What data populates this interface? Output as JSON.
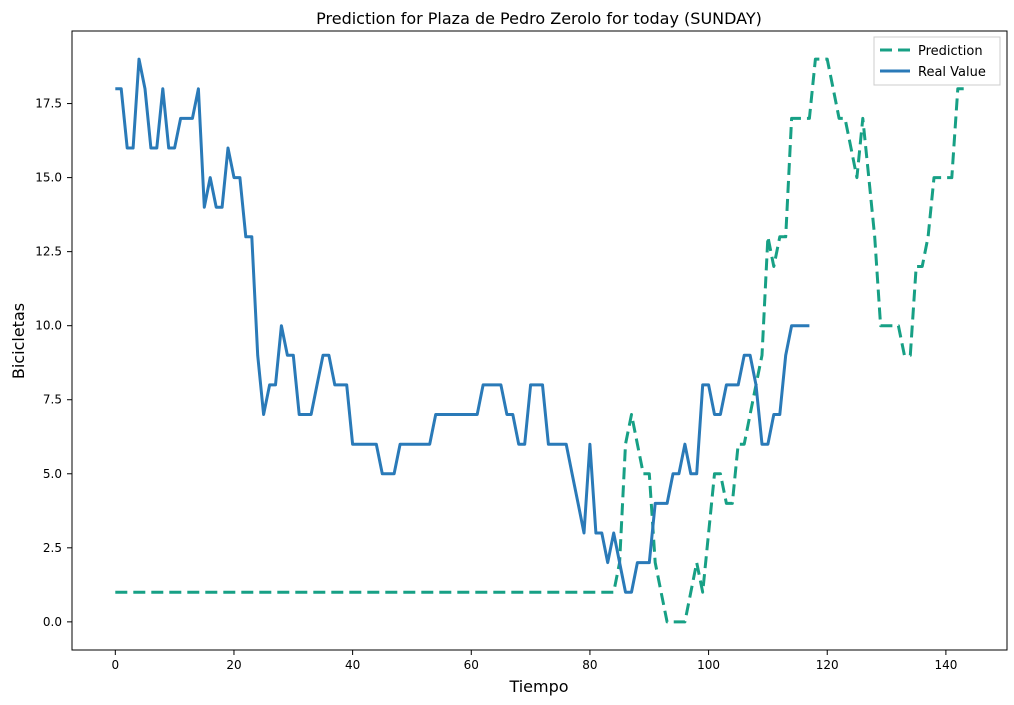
{
  "chart_data": {
    "type": "line",
    "title": "Prediction for Plaza de Pedro Zerolo for today (SUNDAY)",
    "xlabel": "Tiempo",
    "ylabel": "Bicicletas",
    "xlim": [
      -7.3,
      150.3
    ],
    "ylim": [
      -0.95,
      19.95
    ],
    "xticks": [
      0,
      20,
      40,
      60,
      80,
      100,
      120,
      140
    ],
    "xtick_labels": [
      "0",
      "20",
      "40",
      "60",
      "80",
      "100",
      "120",
      "140"
    ],
    "yticks": [
      0,
      2.5,
      5,
      7.5,
      10,
      12.5,
      15,
      17.5
    ],
    "ytick_labels": [
      "0.0",
      "2.5",
      "5.0",
      "7.5",
      "10.0",
      "12.5",
      "15.0",
      "17.5"
    ],
    "grid": false,
    "legend_position": "top-right",
    "series": [
      {
        "name": "Prediction",
        "color": "#17a085",
        "dash": "dashed",
        "points": [
          [
            0,
            1
          ],
          [
            83,
            1
          ],
          [
            84,
            1
          ],
          [
            85,
            2
          ],
          [
            86,
            6
          ],
          [
            87,
            7
          ],
          [
            88,
            6
          ],
          [
            89,
            5
          ],
          [
            90,
            5
          ],
          [
            91,
            2
          ],
          [
            92,
            1
          ],
          [
            93,
            0
          ],
          [
            94,
            0
          ],
          [
            95,
            0
          ],
          [
            96,
            0
          ],
          [
            97,
            1
          ],
          [
            98,
            2
          ],
          [
            99,
            1
          ],
          [
            100,
            3
          ],
          [
            101,
            5
          ],
          [
            102,
            5
          ],
          [
            103,
            4
          ],
          [
            104,
            4
          ],
          [
            105,
            6
          ],
          [
            106,
            6
          ],
          [
            107,
            7
          ],
          [
            108,
            8
          ],
          [
            109,
            9
          ],
          [
            110,
            13
          ],
          [
            111,
            12
          ],
          [
            112,
            13
          ],
          [
            113,
            13
          ],
          [
            114,
            17
          ],
          [
            115,
            17
          ],
          [
            116,
            17
          ],
          [
            117,
            17
          ],
          [
            118,
            19
          ],
          [
            119,
            19
          ],
          [
            120,
            19
          ],
          [
            121,
            18
          ],
          [
            122,
            17
          ],
          [
            123,
            17
          ],
          [
            124,
            16
          ],
          [
            125,
            15
          ],
          [
            126,
            17
          ],
          [
            127,
            15
          ],
          [
            128,
            13
          ],
          [
            129,
            10
          ],
          [
            130,
            10
          ],
          [
            131,
            10
          ],
          [
            132,
            10
          ],
          [
            133,
            9
          ],
          [
            134,
            9
          ],
          [
            135,
            12
          ],
          [
            136,
            12
          ],
          [
            137,
            13
          ],
          [
            138,
            15
          ],
          [
            139,
            15
          ],
          [
            140,
            15
          ],
          [
            141,
            15
          ],
          [
            142,
            18
          ],
          [
            143,
            18
          ]
        ]
      },
      {
        "name": "Real Value",
        "color": "#2a7ab8",
        "dash": "solid",
        "points": [
          [
            0,
            18
          ],
          [
            1,
            18
          ],
          [
            2,
            16
          ],
          [
            3,
            16
          ],
          [
            4,
            19
          ],
          [
            5,
            18
          ],
          [
            6,
            16
          ],
          [
            7,
            16
          ],
          [
            8,
            18
          ],
          [
            9,
            16
          ],
          [
            10,
            16
          ],
          [
            11,
            17
          ],
          [
            12,
            17
          ],
          [
            13,
            17
          ],
          [
            14,
            18
          ],
          [
            15,
            14
          ],
          [
            16,
            15
          ],
          [
            17,
            14
          ],
          [
            18,
            14
          ],
          [
            19,
            16
          ],
          [
            20,
            15
          ],
          [
            21,
            15
          ],
          [
            22,
            13
          ],
          [
            23,
            13
          ],
          [
            24,
            9
          ],
          [
            25,
            7
          ],
          [
            26,
            8
          ],
          [
            27,
            8
          ],
          [
            28,
            10
          ],
          [
            29,
            9
          ],
          [
            30,
            9
          ],
          [
            31,
            7
          ],
          [
            32,
            7
          ],
          [
            33,
            7
          ],
          [
            34,
            8
          ],
          [
            35,
            9
          ],
          [
            36,
            9
          ],
          [
            37,
            8
          ],
          [
            38,
            8
          ],
          [
            39,
            8
          ],
          [
            40,
            6
          ],
          [
            41,
            6
          ],
          [
            42,
            6
          ],
          [
            43,
            6
          ],
          [
            44,
            6
          ],
          [
            45,
            5
          ],
          [
            46,
            5
          ],
          [
            47,
            5
          ],
          [
            48,
            6
          ],
          [
            49,
            6
          ],
          [
            50,
            6
          ],
          [
            51,
            6
          ],
          [
            52,
            6
          ],
          [
            53,
            6
          ],
          [
            54,
            7
          ],
          [
            55,
            7
          ],
          [
            56,
            7
          ],
          [
            57,
            7
          ],
          [
            58,
            7
          ],
          [
            59,
            7
          ],
          [
            60,
            7
          ],
          [
            61,
            7
          ],
          [
            62,
            8
          ],
          [
            63,
            8
          ],
          [
            64,
            8
          ],
          [
            65,
            8
          ],
          [
            66,
            7
          ],
          [
            67,
            7
          ],
          [
            68,
            6
          ],
          [
            69,
            6
          ],
          [
            70,
            8
          ],
          [
            71,
            8
          ],
          [
            72,
            8
          ],
          [
            73,
            6
          ],
          [
            74,
            6
          ],
          [
            75,
            6
          ],
          [
            76,
            6
          ],
          [
            77,
            5
          ],
          [
            78,
            4
          ],
          [
            79,
            3
          ],
          [
            80,
            6
          ],
          [
            81,
            3
          ],
          [
            82,
            3
          ],
          [
            83,
            2
          ],
          [
            84,
            3
          ],
          [
            85,
            2
          ],
          [
            86,
            1
          ],
          [
            87,
            1
          ],
          [
            88,
            2
          ],
          [
            89,
            2
          ],
          [
            90,
            2
          ],
          [
            91,
            4
          ],
          [
            92,
            4
          ],
          [
            93,
            4
          ],
          [
            94,
            5
          ],
          [
            95,
            5
          ],
          [
            96,
            6
          ],
          [
            97,
            5
          ],
          [
            98,
            5
          ],
          [
            99,
            8
          ],
          [
            100,
            8
          ],
          [
            101,
            7
          ],
          [
            102,
            7
          ],
          [
            103,
            8
          ],
          [
            104,
            8
          ],
          [
            105,
            8
          ],
          [
            106,
            9
          ],
          [
            107,
            9
          ],
          [
            108,
            8
          ],
          [
            109,
            6
          ],
          [
            110,
            6
          ],
          [
            111,
            7
          ],
          [
            112,
            7
          ],
          [
            113,
            9
          ],
          [
            114,
            10
          ],
          [
            115,
            10
          ],
          [
            116,
            10
          ],
          [
            117,
            10
          ]
        ]
      }
    ]
  }
}
